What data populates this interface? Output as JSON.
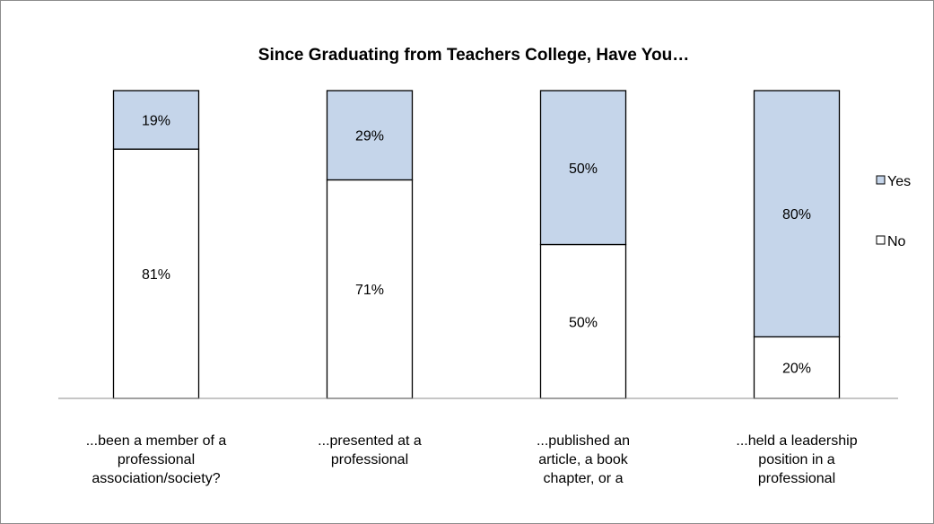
{
  "chart_data": {
    "type": "bar",
    "stacked": true,
    "title": "Since Graduating from  Teachers College, Have You…",
    "xlabel": "",
    "ylabel": "",
    "ylim": [
      0,
      100
    ],
    "grid": false,
    "legend_position": "right",
    "categories": [
      [
        "...been a member of a",
        "professional",
        "association/society?"
      ],
      [
        "...presented  at a",
        "professional"
      ],
      [
        "...published an",
        "article, a book",
        "chapter, or a"
      ],
      [
        "...held a leadership",
        "position in a",
        "professional"
      ]
    ],
    "series": [
      {
        "name": "No",
        "color": "#ffffff",
        "values": [
          81,
          71,
          50,
          20
        ],
        "labels": [
          "81%",
          "71%",
          "50%",
          "20%"
        ]
      },
      {
        "name": "Yes",
        "color": "#c5d5ea",
        "values": [
          19,
          29,
          50,
          80
        ],
        "labels": [
          "19%",
          "29%",
          "50%",
          "80%"
        ]
      }
    ],
    "legend_order": [
      "Yes",
      "No"
    ]
  }
}
